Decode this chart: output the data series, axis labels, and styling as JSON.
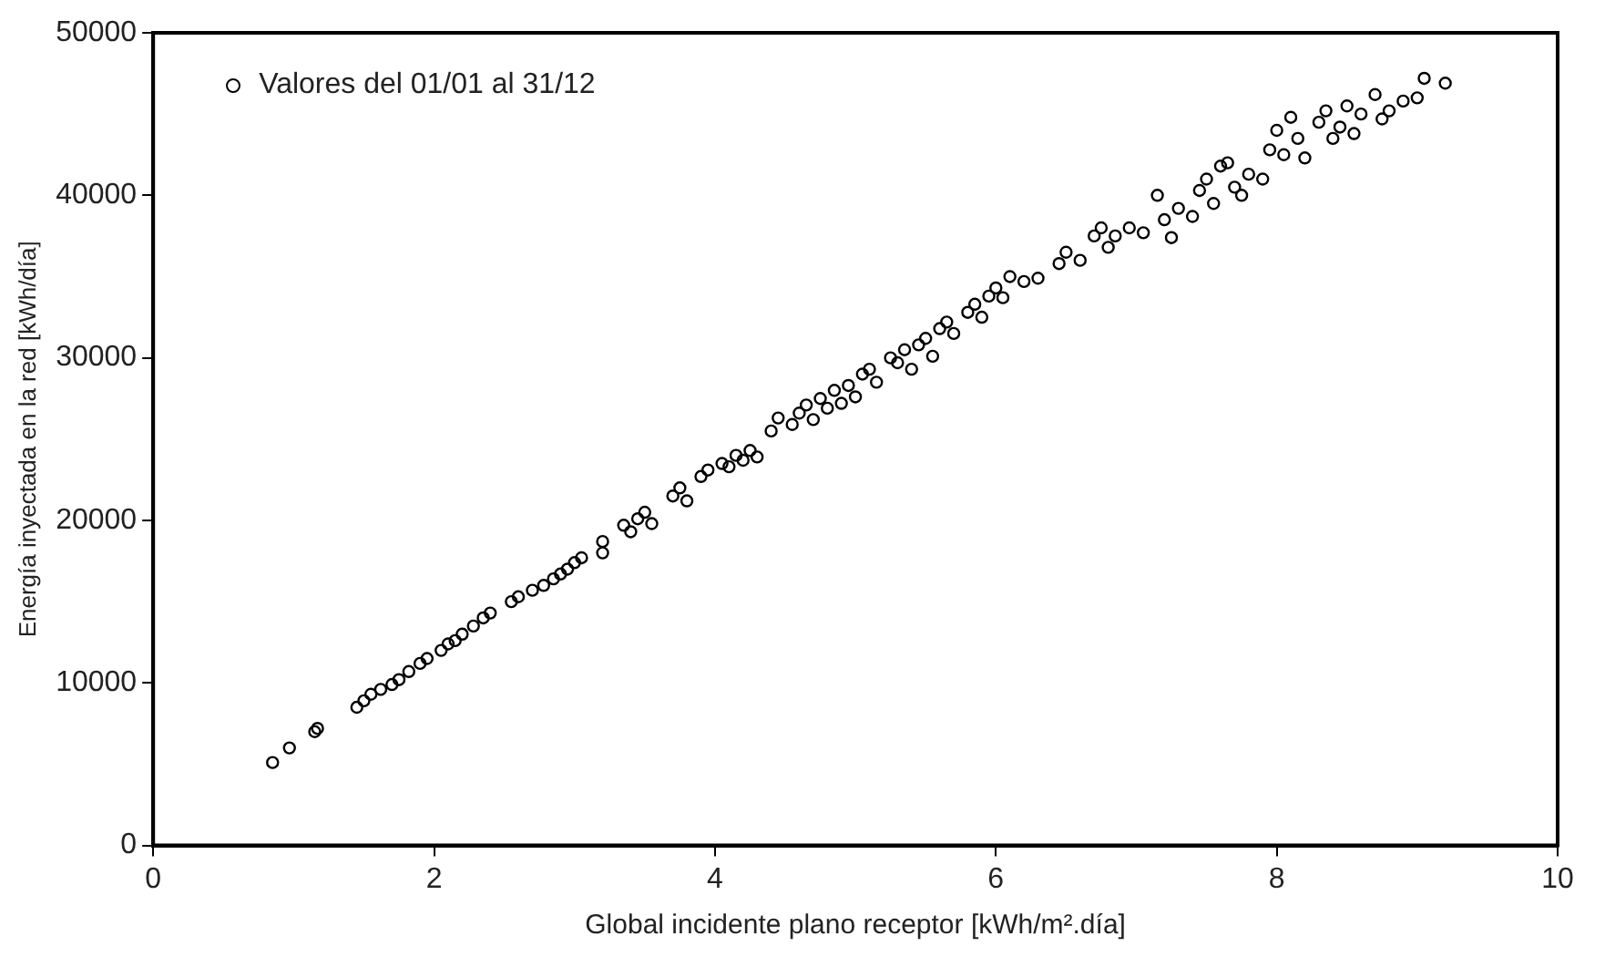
{
  "chart_data": {
    "type": "scatter",
    "xlabel": "Global incidente plano receptor [kWh/m².día]",
    "ylabel": "Energía inyectada en la red [kWh/día]",
    "xlim": [
      0,
      10
    ],
    "xticks": [
      0,
      2,
      4,
      6,
      8,
      10
    ],
    "ylim": [
      0,
      50000
    ],
    "yticks": [
      0,
      10000,
      20000,
      30000,
      40000,
      50000
    ],
    "grid": false,
    "legend": "top left",
    "marker": "circle",
    "series": [
      {
        "name": "Valores del 01/01 al 31/12",
        "color": "#000000",
        "x": [
          0.85,
          0.97,
          1.15,
          1.17,
          1.45,
          1.5,
          1.55,
          1.62,
          1.7,
          1.75,
          1.82,
          1.9,
          1.95,
          2.05,
          2.1,
          2.15,
          2.2,
          2.28,
          2.35,
          2.4,
          2.55,
          2.6,
          2.7,
          2.78,
          2.85,
          2.9,
          2.95,
          3.0,
          3.05,
          3.2,
          3.2,
          3.35,
          3.4,
          3.45,
          3.5,
          3.55,
          3.7,
          3.75,
          3.8,
          3.9,
          3.95,
          4.05,
          4.1,
          4.15,
          4.2,
          4.25,
          4.3,
          4.4,
          4.45,
          4.55,
          4.6,
          4.65,
          4.7,
          4.75,
          4.8,
          4.85,
          4.9,
          4.95,
          5.0,
          5.05,
          5.1,
          5.15,
          5.25,
          5.3,
          5.35,
          5.4,
          5.45,
          5.5,
          5.55,
          5.6,
          5.65,
          5.7,
          5.8,
          5.85,
          5.9,
          5.95,
          6.0,
          6.05,
          6.1,
          6.2,
          6.3,
          6.45,
          6.5,
          6.6,
          6.7,
          6.75,
          6.8,
          6.85,
          6.95,
          7.05,
          7.15,
          7.2,
          7.25,
          7.3,
          7.4,
          7.45,
          7.5,
          7.55,
          7.6,
          7.65,
          7.7,
          7.75,
          7.8,
          7.9,
          7.95,
          8.0,
          8.05,
          8.1,
          8.15,
          8.2,
          8.3,
          8.35,
          8.4,
          8.45,
          8.5,
          8.55,
          8.6,
          8.7,
          8.75,
          8.8,
          8.9,
          9.0,
          9.05,
          9.2
        ],
        "values": [
          5100,
          6000,
          7000,
          7200,
          8500,
          8900,
          9300,
          9600,
          9900,
          10200,
          10700,
          11200,
          11500,
          12000,
          12400,
          12600,
          13000,
          13500,
          14000,
          14300,
          15000,
          15300,
          15700,
          16000,
          16400,
          16700,
          17000,
          17400,
          17700,
          18000,
          18700,
          19700,
          19300,
          20100,
          20500,
          19800,
          21500,
          22000,
          21200,
          22700,
          23100,
          23500,
          23300,
          24000,
          23700,
          24300,
          23900,
          25500,
          26300,
          25900,
          26600,
          27100,
          26200,
          27500,
          26900,
          28000,
          27200,
          28300,
          27600,
          29000,
          29300,
          28500,
          30000,
          29700,
          30500,
          29300,
          30800,
          31200,
          30100,
          31800,
          32200,
          31500,
          32800,
          33300,
          32500,
          33800,
          34300,
          33700,
          35000,
          34700,
          34900,
          35800,
          36500,
          36000,
          37500,
          38000,
          36800,
          37500,
          38000,
          37700,
          40000,
          38500,
          37400,
          39200,
          38700,
          40300,
          41000,
          39500,
          41800,
          42000,
          40500,
          40000,
          41300,
          41000,
          42800,
          44000,
          42500,
          44800,
          43500,
          42300,
          44500,
          45200,
          43500,
          44200,
          45500,
          43800,
          45000,
          46200,
          44700,
          45200,
          45800,
          46000,
          47200,
          46900
        ]
      }
    ]
  }
}
